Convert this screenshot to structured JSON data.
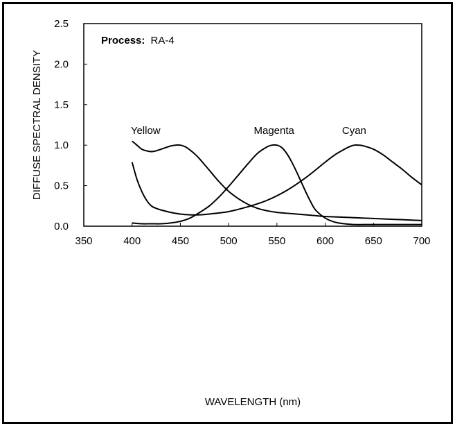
{
  "chart_data": {
    "type": "line",
    "title": "",
    "annotation": {
      "label": "Process:",
      "value": "RA-4"
    },
    "xlabel": "WAVELENGTH (nm)",
    "ylabel": "DIFFUSE SPECTRAL DENSITY",
    "xlim": [
      350,
      700
    ],
    "ylim": [
      0,
      2.5
    ],
    "xticks": [
      350,
      400,
      450,
      500,
      550,
      600,
      650,
      700
    ],
    "yticks": [
      "0.0",
      "0.5",
      "1.0",
      "1.5",
      "2.0",
      "2.5"
    ],
    "grid": false,
    "series": [
      {
        "name": "Yellow",
        "x": [
          400,
          405,
          410,
          415,
          420,
          425,
          430,
          435,
          440,
          445,
          450,
          455,
          460,
          465,
          470,
          475,
          480,
          490,
          500,
          510,
          520,
          530,
          540,
          550,
          560,
          570,
          580,
          590,
          600,
          620,
          640,
          660,
          680,
          700
        ],
        "y": [
          1.05,
          1.0,
          0.95,
          0.93,
          0.92,
          0.93,
          0.95,
          0.97,
          0.99,
          1.0,
          1.0,
          0.98,
          0.94,
          0.89,
          0.83,
          0.76,
          0.69,
          0.55,
          0.43,
          0.34,
          0.27,
          0.22,
          0.19,
          0.17,
          0.16,
          0.15,
          0.14,
          0.13,
          0.12,
          0.11,
          0.1,
          0.09,
          0.08,
          0.07
        ]
      },
      {
        "name": "Magenta",
        "x": [
          400,
          410,
          420,
          430,
          440,
          450,
          460,
          470,
          480,
          490,
          500,
          510,
          520,
          530,
          540,
          545,
          550,
          555,
          560,
          565,
          570,
          575,
          580,
          585,
          590,
          600,
          610,
          620,
          630,
          640,
          650,
          660,
          680,
          700
        ],
        "y": [
          0.04,
          0.03,
          0.03,
          0.03,
          0.04,
          0.06,
          0.1,
          0.17,
          0.25,
          0.36,
          0.49,
          0.63,
          0.77,
          0.9,
          0.98,
          1.0,
          1.0,
          0.97,
          0.9,
          0.8,
          0.68,
          0.55,
          0.42,
          0.3,
          0.2,
          0.1,
          0.05,
          0.03,
          0.02,
          0.02,
          0.02,
          0.02,
          0.02,
          0.02
        ]
      },
      {
        "name": "Cyan",
        "x": [
          400,
          405,
          410,
          415,
          420,
          425,
          430,
          440,
          450,
          460,
          470,
          480,
          500,
          520,
          540,
          560,
          580,
          600,
          610,
          620,
          625,
          630,
          635,
          640,
          650,
          660,
          670,
          680,
          690,
          700
        ],
        "y": [
          0.79,
          0.58,
          0.43,
          0.32,
          0.25,
          0.22,
          0.2,
          0.17,
          0.15,
          0.14,
          0.14,
          0.15,
          0.18,
          0.24,
          0.32,
          0.44,
          0.6,
          0.79,
          0.88,
          0.95,
          0.98,
          1.0,
          1.0,
          0.99,
          0.95,
          0.88,
          0.79,
          0.7,
          0.6,
          0.51
        ]
      }
    ],
    "curve_labels": [
      {
        "name": "Yellow",
        "x": 414,
        "y": 1.07
      },
      {
        "name": "Magenta",
        "x": 547,
        "y": 1.07
      },
      {
        "name": "Cyan",
        "x": 630,
        "y": 1.07
      }
    ]
  }
}
